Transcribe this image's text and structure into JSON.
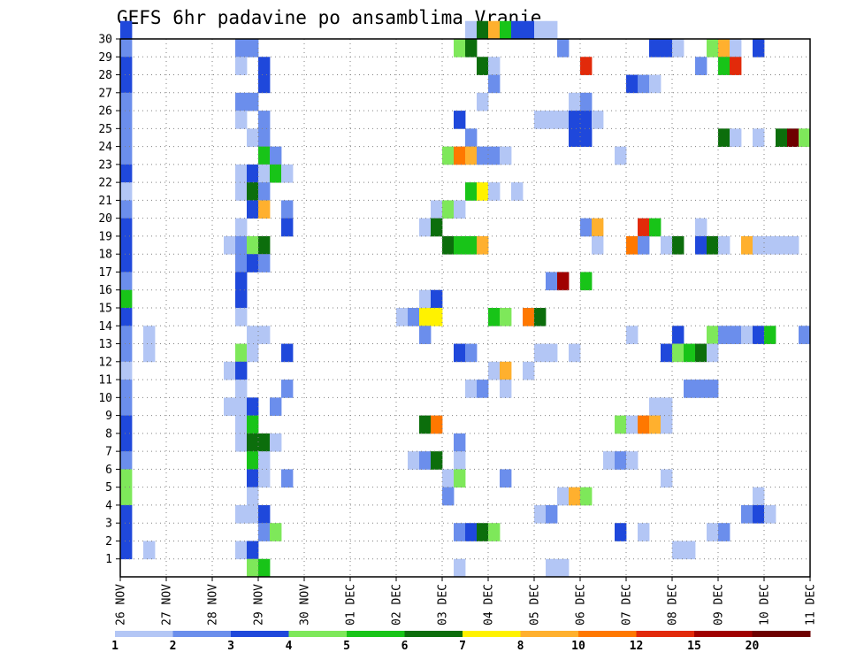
{
  "chart_data": {
    "type": "heatmap",
    "title": "GEFS 6hr padavine po ansamblima Vranje",
    "y_ticks": [
      "1",
      "2",
      "3",
      "4",
      "5",
      "6",
      "7",
      "8",
      "9",
      "10",
      "11",
      "12",
      "13",
      "14",
      "15",
      "16",
      "17",
      "18",
      "19",
      "20",
      "21",
      "22",
      "23",
      "24",
      "25",
      "26",
      "27",
      "28",
      "29",
      "30"
    ],
    "x_ticks": [
      "26 NOV",
      "27 NOV",
      "28 NOV",
      "29 NOV",
      "30 NOV",
      "01 DEC",
      "02 DEC",
      "03 DEC",
      "04 DEC",
      "05 DEC",
      "06 DEC",
      "07 DEC",
      "08 DEC",
      "09 DEC",
      "10 DEC",
      "11 DEC"
    ],
    "x_range": [
      0,
      60
    ],
    "y_range": [
      0,
      30
    ],
    "grid": true,
    "legend_position": "bottom",
    "color_scale": {
      "bin_colors": [
        "#b3c6f5",
        "#6b8eec",
        "#1f48db",
        "#7ee85a",
        "#18c418",
        "#0c6e0c",
        "#fff200",
        "#ffb02e",
        "#ff7800",
        "#e22a0a",
        "#a00000",
        "#6e0000"
      ],
      "labels": [
        "1",
        "2",
        "3",
        "4",
        "5",
        "6",
        "7",
        "8",
        "10",
        "12",
        "15",
        "20"
      ]
    },
    "cells": [
      {
        "x": 0,
        "y": 30,
        "c": 3
      },
      {
        "x": 0,
        "y": 29,
        "c": 2
      },
      {
        "x": 0,
        "y": 28,
        "c": 3
      },
      {
        "x": 0,
        "y": 27,
        "c": 3
      },
      {
        "x": 0,
        "y": 26,
        "c": 2
      },
      {
        "x": 0,
        "y": 25,
        "c": 2
      },
      {
        "x": 0,
        "y": 24,
        "c": 2
      },
      {
        "x": 0,
        "y": 23,
        "c": 2
      },
      {
        "x": 0,
        "y": 22,
        "c": 3
      },
      {
        "x": 0,
        "y": 21,
        "c": 1
      },
      {
        "x": 0,
        "y": 20,
        "c": 2
      },
      {
        "x": 0,
        "y": 19,
        "c": 3
      },
      {
        "x": 0,
        "y": 18,
        "c": 3
      },
      {
        "x": 0,
        "y": 17,
        "c": 3
      },
      {
        "x": 0,
        "y": 16,
        "c": 2
      },
      {
        "x": 0,
        "y": 15,
        "c": 5
      },
      {
        "x": 0,
        "y": 14,
        "c": 3
      },
      {
        "x": 0,
        "y": 13,
        "c": 2
      },
      {
        "x": 0,
        "y": 12,
        "c": 2
      },
      {
        "x": 0,
        "y": 11,
        "c": 1
      },
      {
        "x": 0,
        "y": 10,
        "c": 2
      },
      {
        "x": 0,
        "y": 9,
        "c": 2
      },
      {
        "x": 0,
        "y": 8,
        "c": 3
      },
      {
        "x": 0,
        "y": 7,
        "c": 3
      },
      {
        "x": 0,
        "y": 6,
        "c": 2
      },
      {
        "x": 0,
        "y": 5,
        "c": 4
      },
      {
        "x": 0,
        "y": 4,
        "c": 4
      },
      {
        "x": 0,
        "y": 3,
        "c": 3
      },
      {
        "x": 0,
        "y": 2,
        "c": 3
      },
      {
        "x": 0,
        "y": 1,
        "c": 3
      },
      {
        "x": 2,
        "y": 13,
        "c": 1
      },
      {
        "x": 2,
        "y": 12,
        "c": 1
      },
      {
        "x": 2,
        "y": 1,
        "c": 1
      },
      {
        "x": 10,
        "y": 29,
        "c": 2
      },
      {
        "x": 11,
        "y": 29,
        "c": 2
      },
      {
        "x": 10,
        "y": 28,
        "c": 1
      },
      {
        "x": 12,
        "y": 28,
        "c": 3
      },
      {
        "x": 12,
        "y": 27,
        "c": 3
      },
      {
        "x": 10,
        "y": 26,
        "c": 2
      },
      {
        "x": 11,
        "y": 26,
        "c": 2
      },
      {
        "x": 10,
        "y": 25,
        "c": 1
      },
      {
        "x": 12,
        "y": 25,
        "c": 2
      },
      {
        "x": 11,
        "y": 24,
        "c": 1
      },
      {
        "x": 12,
        "y": 24,
        "c": 2
      },
      {
        "x": 12,
        "y": 23,
        "c": 5
      },
      {
        "x": 13,
        "y": 23,
        "c": 2
      },
      {
        "x": 10,
        "y": 22,
        "c": 1
      },
      {
        "x": 11,
        "y": 22,
        "c": 3
      },
      {
        "x": 12,
        "y": 22,
        "c": 1
      },
      {
        "x": 13,
        "y": 22,
        "c": 5
      },
      {
        "x": 14,
        "y": 22,
        "c": 1
      },
      {
        "x": 10,
        "y": 21,
        "c": 1
      },
      {
        "x": 11,
        "y": 21,
        "c": 6
      },
      {
        "x": 12,
        "y": 21,
        "c": 2
      },
      {
        "x": 11,
        "y": 20,
        "c": 3
      },
      {
        "x": 12,
        "y": 20,
        "c": 8
      },
      {
        "x": 14,
        "y": 20,
        "c": 2
      },
      {
        "x": 10,
        "y": 19,
        "c": 1
      },
      {
        "x": 14,
        "y": 19,
        "c": 3
      },
      {
        "x": 9,
        "y": 18,
        "c": 1
      },
      {
        "x": 10,
        "y": 18,
        "c": 2
      },
      {
        "x": 11,
        "y": 18,
        "c": 4
      },
      {
        "x": 12,
        "y": 18,
        "c": 6
      },
      {
        "x": 10,
        "y": 17,
        "c": 2
      },
      {
        "x": 11,
        "y": 17,
        "c": 3
      },
      {
        "x": 12,
        "y": 17,
        "c": 2
      },
      {
        "x": 10,
        "y": 16,
        "c": 3
      },
      {
        "x": 10,
        "y": 15,
        "c": 3
      },
      {
        "x": 10,
        "y": 14,
        "c": 1
      },
      {
        "x": 11,
        "y": 13,
        "c": 1
      },
      {
        "x": 12,
        "y": 13,
        "c": 1
      },
      {
        "x": 10,
        "y": 12,
        "c": 4
      },
      {
        "x": 11,
        "y": 12,
        "c": 1
      },
      {
        "x": 14,
        "y": 12,
        "c": 3
      },
      {
        "x": 9,
        "y": 11,
        "c": 1
      },
      {
        "x": 10,
        "y": 11,
        "c": 3
      },
      {
        "x": 10,
        "y": 10,
        "c": 1
      },
      {
        "x": 14,
        "y": 10,
        "c": 2
      },
      {
        "x": 9,
        "y": 9,
        "c": 1
      },
      {
        "x": 10,
        "y": 9,
        "c": 1
      },
      {
        "x": 11,
        "y": 9,
        "c": 3
      },
      {
        "x": 13,
        "y": 9,
        "c": 2
      },
      {
        "x": 10,
        "y": 8,
        "c": 1
      },
      {
        "x": 11,
        "y": 8,
        "c": 5
      },
      {
        "x": 10,
        "y": 7,
        "c": 1
      },
      {
        "x": 11,
        "y": 7,
        "c": 6
      },
      {
        "x": 12,
        "y": 7,
        "c": 6
      },
      {
        "x": 13,
        "y": 7,
        "c": 1
      },
      {
        "x": 11,
        "y": 6,
        "c": 5
      },
      {
        "x": 12,
        "y": 6,
        "c": 1
      },
      {
        "x": 11,
        "y": 5,
        "c": 3
      },
      {
        "x": 12,
        "y": 5,
        "c": 1
      },
      {
        "x": 14,
        "y": 5,
        "c": 2
      },
      {
        "x": 11,
        "y": 4,
        "c": 1
      },
      {
        "x": 10,
        "y": 3,
        "c": 1
      },
      {
        "x": 11,
        "y": 3,
        "c": 1
      },
      {
        "x": 12,
        "y": 3,
        "c": 3
      },
      {
        "x": 12,
        "y": 2,
        "c": 2
      },
      {
        "x": 13,
        "y": 2,
        "c": 4
      },
      {
        "x": 10,
        "y": 1,
        "c": 1
      },
      {
        "x": 11,
        "y": 1,
        "c": 3
      },
      {
        "x": 11,
        "y": 0,
        "c": 4
      },
      {
        "x": 12,
        "y": 0,
        "c": 5
      },
      {
        "x": 30,
        "y": 30,
        "c": 1
      },
      {
        "x": 31,
        "y": 30,
        "c": 6
      },
      {
        "x": 32,
        "y": 30,
        "c": 8
      },
      {
        "x": 33,
        "y": 30,
        "c": 5
      },
      {
        "x": 34,
        "y": 30,
        "c": 3
      },
      {
        "x": 35,
        "y": 30,
        "c": 3
      },
      {
        "x": 36,
        "y": 30,
        "c": 1
      },
      {
        "x": 37,
        "y": 30,
        "c": 1
      },
      {
        "x": 29,
        "y": 29,
        "c": 4
      },
      {
        "x": 30,
        "y": 29,
        "c": 6
      },
      {
        "x": 38,
        "y": 29,
        "c": 2
      },
      {
        "x": 46,
        "y": 29,
        "c": 3
      },
      {
        "x": 47,
        "y": 29,
        "c": 3
      },
      {
        "x": 48,
        "y": 29,
        "c": 1
      },
      {
        "x": 51,
        "y": 29,
        "c": 4
      },
      {
        "x": 52,
        "y": 29,
        "c": 8
      },
      {
        "x": 53,
        "y": 29,
        "c": 1
      },
      {
        "x": 55,
        "y": 29,
        "c": 3
      },
      {
        "x": 31,
        "y": 28,
        "c": 6
      },
      {
        "x": 32,
        "y": 28,
        "c": 1
      },
      {
        "x": 40,
        "y": 28,
        "c": 10
      },
      {
        "x": 50,
        "y": 28,
        "c": 2
      },
      {
        "x": 52,
        "y": 28,
        "c": 5
      },
      {
        "x": 53,
        "y": 28,
        "c": 10
      },
      {
        "x": 32,
        "y": 27,
        "c": 2
      },
      {
        "x": 44,
        "y": 27,
        "c": 3
      },
      {
        "x": 45,
        "y": 27,
        "c": 2
      },
      {
        "x": 46,
        "y": 27,
        "c": 1
      },
      {
        "x": 31,
        "y": 26,
        "c": 1
      },
      {
        "x": 39,
        "y": 26,
        "c": 1
      },
      {
        "x": 40,
        "y": 26,
        "c": 2
      },
      {
        "x": 29,
        "y": 25,
        "c": 3
      },
      {
        "x": 36,
        "y": 25,
        "c": 1
      },
      {
        "x": 37,
        "y": 25,
        "c": 1
      },
      {
        "x": 38,
        "y": 25,
        "c": 1
      },
      {
        "x": 39,
        "y": 25,
        "c": 3
      },
      {
        "x": 40,
        "y": 25,
        "c": 3
      },
      {
        "x": 41,
        "y": 25,
        "c": 1
      },
      {
        "x": 30,
        "y": 24,
        "c": 2
      },
      {
        "x": 39,
        "y": 24,
        "c": 3
      },
      {
        "x": 40,
        "y": 24,
        "c": 3
      },
      {
        "x": 52,
        "y": 24,
        "c": 6
      },
      {
        "x": 53,
        "y": 24,
        "c": 1
      },
      {
        "x": 55,
        "y": 24,
        "c": 1
      },
      {
        "x": 57,
        "y": 24,
        "c": 6
      },
      {
        "x": 58,
        "y": 24,
        "c": 12
      },
      {
        "x": 59,
        "y": 24,
        "c": 4
      },
      {
        "x": 28,
        "y": 23,
        "c": 4
      },
      {
        "x": 29,
        "y": 23,
        "c": 9
      },
      {
        "x": 30,
        "y": 23,
        "c": 8
      },
      {
        "x": 31,
        "y": 23,
        "c": 2
      },
      {
        "x": 32,
        "y": 23,
        "c": 2
      },
      {
        "x": 33,
        "y": 23,
        "c": 1
      },
      {
        "x": 43,
        "y": 23,
        "c": 1
      },
      {
        "x": 30,
        "y": 21,
        "c": 5
      },
      {
        "x": 31,
        "y": 21,
        "c": 7
      },
      {
        "x": 32,
        "y": 21,
        "c": 1
      },
      {
        "x": 34,
        "y": 21,
        "c": 1
      },
      {
        "x": 27,
        "y": 20,
        "c": 1
      },
      {
        "x": 28,
        "y": 20,
        "c": 4
      },
      {
        "x": 29,
        "y": 20,
        "c": 1
      },
      {
        "x": 26,
        "y": 19,
        "c": 1
      },
      {
        "x": 27,
        "y": 19,
        "c": 6
      },
      {
        "x": 40,
        "y": 19,
        "c": 2
      },
      {
        "x": 41,
        "y": 19,
        "c": 8
      },
      {
        "x": 45,
        "y": 19,
        "c": 10
      },
      {
        "x": 46,
        "y": 19,
        "c": 5
      },
      {
        "x": 50,
        "y": 19,
        "c": 1
      },
      {
        "x": 28,
        "y": 18,
        "c": 6
      },
      {
        "x": 29,
        "y": 18,
        "c": 5
      },
      {
        "x": 30,
        "y": 18,
        "c": 5
      },
      {
        "x": 31,
        "y": 18,
        "c": 8
      },
      {
        "x": 41,
        "y": 18,
        "c": 1
      },
      {
        "x": 44,
        "y": 18,
        "c": 9
      },
      {
        "x": 45,
        "y": 18,
        "c": 2
      },
      {
        "x": 47,
        "y": 18,
        "c": 1
      },
      {
        "x": 48,
        "y": 18,
        "c": 6
      },
      {
        "x": 50,
        "y": 18,
        "c": 3
      },
      {
        "x": 51,
        "y": 18,
        "c": 6
      },
      {
        "x": 52,
        "y": 18,
        "c": 1
      },
      {
        "x": 54,
        "y": 18,
        "c": 8
      },
      {
        "x": 55,
        "y": 18,
        "c": 1
      },
      {
        "x": 56,
        "y": 18,
        "c": 1
      },
      {
        "x": 57,
        "y": 18,
        "c": 1
      },
      {
        "x": 58,
        "y": 18,
        "c": 1
      },
      {
        "x": 37,
        "y": 16,
        "c": 2
      },
      {
        "x": 38,
        "y": 16,
        "c": 11
      },
      {
        "x": 40,
        "y": 16,
        "c": 5
      },
      {
        "x": 26,
        "y": 15,
        "c": 1
      },
      {
        "x": 27,
        "y": 15,
        "c": 3
      },
      {
        "x": 24,
        "y": 14,
        "c": 1
      },
      {
        "x": 25,
        "y": 14,
        "c": 2
      },
      {
        "x": 26,
        "y": 14,
        "c": 7
      },
      {
        "x": 27,
        "y": 14,
        "c": 7
      },
      {
        "x": 32,
        "y": 14,
        "c": 5
      },
      {
        "x": 33,
        "y": 14,
        "c": 4
      },
      {
        "x": 35,
        "y": 14,
        "c": 9
      },
      {
        "x": 36,
        "y": 14,
        "c": 6
      },
      {
        "x": 26,
        "y": 13,
        "c": 2
      },
      {
        "x": 44,
        "y": 13,
        "c": 1
      },
      {
        "x": 48,
        "y": 13,
        "c": 3
      },
      {
        "x": 51,
        "y": 13,
        "c": 4
      },
      {
        "x": 52,
        "y": 13,
        "c": 2
      },
      {
        "x": 53,
        "y": 13,
        "c": 2
      },
      {
        "x": 54,
        "y": 13,
        "c": 1
      },
      {
        "x": 55,
        "y": 13,
        "c": 3
      },
      {
        "x": 56,
        "y": 13,
        "c": 5
      },
      {
        "x": 59,
        "y": 13,
        "c": 2
      },
      {
        "x": 29,
        "y": 12,
        "c": 3
      },
      {
        "x": 30,
        "y": 12,
        "c": 2
      },
      {
        "x": 36,
        "y": 12,
        "c": 1
      },
      {
        "x": 37,
        "y": 12,
        "c": 1
      },
      {
        "x": 39,
        "y": 12,
        "c": 1
      },
      {
        "x": 47,
        "y": 12,
        "c": 3
      },
      {
        "x": 48,
        "y": 12,
        "c": 4
      },
      {
        "x": 49,
        "y": 12,
        "c": 5
      },
      {
        "x": 50,
        "y": 12,
        "c": 6
      },
      {
        "x": 51,
        "y": 12,
        "c": 1
      },
      {
        "x": 32,
        "y": 11,
        "c": 1
      },
      {
        "x": 33,
        "y": 11,
        "c": 8
      },
      {
        "x": 35,
        "y": 11,
        "c": 1
      },
      {
        "x": 30,
        "y": 10,
        "c": 1
      },
      {
        "x": 31,
        "y": 10,
        "c": 2
      },
      {
        "x": 33,
        "y": 10,
        "c": 1
      },
      {
        "x": 49,
        "y": 10,
        "c": 2
      },
      {
        "x": 50,
        "y": 10,
        "c": 2
      },
      {
        "x": 51,
        "y": 10,
        "c": 2
      },
      {
        "x": 46,
        "y": 9,
        "c": 1
      },
      {
        "x": 47,
        "y": 9,
        "c": 1
      },
      {
        "x": 26,
        "y": 8,
        "c": 6
      },
      {
        "x": 27,
        "y": 8,
        "c": 9
      },
      {
        "x": 43,
        "y": 8,
        "c": 4
      },
      {
        "x": 44,
        "y": 8,
        "c": 1
      },
      {
        "x": 45,
        "y": 8,
        "c": 9
      },
      {
        "x": 46,
        "y": 8,
        "c": 8
      },
      {
        "x": 47,
        "y": 8,
        "c": 1
      },
      {
        "x": 29,
        "y": 7,
        "c": 2
      },
      {
        "x": 25,
        "y": 6,
        "c": 1
      },
      {
        "x": 26,
        "y": 6,
        "c": 2
      },
      {
        "x": 27,
        "y": 6,
        "c": 6
      },
      {
        "x": 29,
        "y": 6,
        "c": 1
      },
      {
        "x": 42,
        "y": 6,
        "c": 1
      },
      {
        "x": 43,
        "y": 6,
        "c": 2
      },
      {
        "x": 44,
        "y": 6,
        "c": 1
      },
      {
        "x": 28,
        "y": 5,
        "c": 1
      },
      {
        "x": 29,
        "y": 5,
        "c": 4
      },
      {
        "x": 33,
        "y": 5,
        "c": 2
      },
      {
        "x": 47,
        "y": 5,
        "c": 1
      },
      {
        "x": 28,
        "y": 4,
        "c": 2
      },
      {
        "x": 38,
        "y": 4,
        "c": 1
      },
      {
        "x": 39,
        "y": 4,
        "c": 8
      },
      {
        "x": 40,
        "y": 4,
        "c": 4
      },
      {
        "x": 55,
        "y": 4,
        "c": 1
      },
      {
        "x": 36,
        "y": 3,
        "c": 1
      },
      {
        "x": 37,
        "y": 3,
        "c": 2
      },
      {
        "x": 54,
        "y": 3,
        "c": 2
      },
      {
        "x": 55,
        "y": 3,
        "c": 3
      },
      {
        "x": 56,
        "y": 3,
        "c": 1
      },
      {
        "x": 29,
        "y": 2,
        "c": 2
      },
      {
        "x": 30,
        "y": 2,
        "c": 3
      },
      {
        "x": 31,
        "y": 2,
        "c": 6
      },
      {
        "x": 32,
        "y": 2,
        "c": 4
      },
      {
        "x": 43,
        "y": 2,
        "c": 3
      },
      {
        "x": 45,
        "y": 2,
        "c": 1
      },
      {
        "x": 51,
        "y": 2,
        "c": 1
      },
      {
        "x": 52,
        "y": 2,
        "c": 2
      },
      {
        "x": 48,
        "y": 1,
        "c": 1
      },
      {
        "x": 49,
        "y": 1,
        "c": 1
      },
      {
        "x": 29,
        "y": 0,
        "c": 1
      },
      {
        "x": 37,
        "y": 0,
        "c": 1
      },
      {
        "x": 38,
        "y": 0,
        "c": 1
      }
    ]
  }
}
